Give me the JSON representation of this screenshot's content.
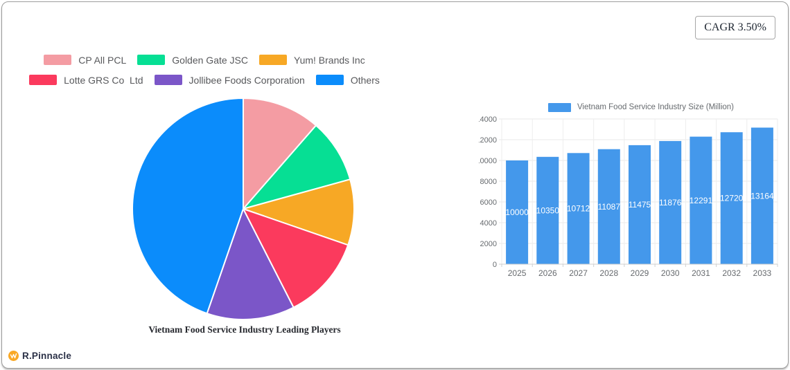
{
  "cagr": {
    "label": "CAGR 3.50%"
  },
  "brand": {
    "name": "R.Pinnacle",
    "icon_color": "#F9A825"
  },
  "chart_data": [
    {
      "type": "pie",
      "title": "Vietnam Food Service Industry Leading Players",
      "labels": [
        "CP All PCL",
        "Golden Gate JSC",
        "Yum! Brands Inc",
        "Lotte GRS Co  Ltd",
        "Jollibee Foods Corporation",
        "Others"
      ],
      "values": [
        11.4,
        9.3,
        9.6,
        12.2,
        12.8,
        44.7
      ],
      "colors": [
        "#F49CA3",
        "#06DF94",
        "#F7A825",
        "#FB3A5D",
        "#7B56C8",
        "#0B8CFB"
      ],
      "units": "percent (estimated from slice angles)",
      "start_angle_deg": 0,
      "direction": "clockwise",
      "legend_position": "top",
      "legend_rows": [
        3,
        3
      ]
    },
    {
      "type": "bar",
      "legend": "Vietnam Food Service Industry Size (Million)",
      "categories": [
        "2025",
        "2026",
        "2027",
        "2028",
        "2029",
        "2030",
        "2031",
        "2032",
        "2033"
      ],
      "values": [
        10000,
        10350,
        10712,
        11087,
        11475,
        11876,
        12291,
        12720,
        13164
      ],
      "bar_color": "#4498EB",
      "data_label_color": "#ffffff",
      "axis_label_color": "#666a6e",
      "ylim": [
        0,
        14000
      ],
      "ytick_step": 2000,
      "grid": true,
      "legend_position": "top"
    }
  ]
}
